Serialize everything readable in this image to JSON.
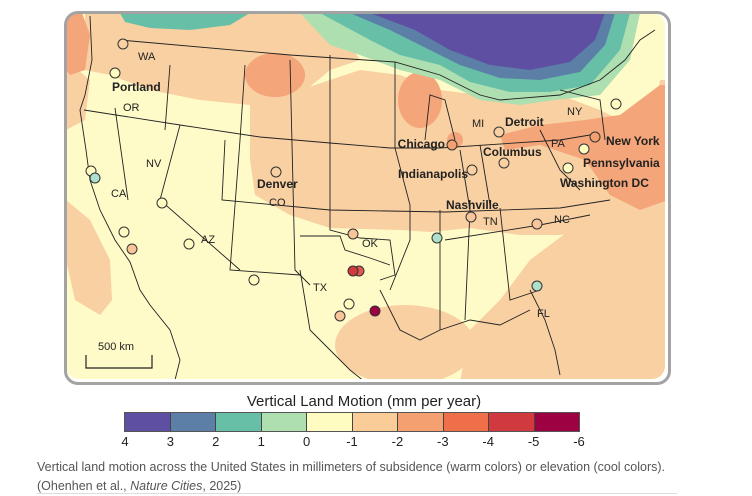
{
  "map": {
    "state_labels": {
      "wa": "WA",
      "or": "OR",
      "nv": "NV",
      "ca": "CA",
      "az": "AZ",
      "co": "CO",
      "ok": "OK",
      "tx": "TX",
      "tn": "TN",
      "nc": "NC",
      "fl": "FL",
      "mi": "MI",
      "pa": "PA",
      "ny": "NY"
    },
    "city_labels": {
      "portland": "Portland",
      "denver": "Denver",
      "chicago": "Chicago",
      "detroit": "Detroit",
      "columbus": "Columbus",
      "indianapolis": "Indianapolis",
      "nashville": "Nashville",
      "new_york": "New York",
      "pennsylvania": "Pennsylvania",
      "washington_dc": "Washington DC"
    },
    "scale_bar": "500 km"
  },
  "legend": {
    "title": "Vertical Land Motion (mm per year)",
    "colors": [
      "#5e4fa2",
      "#5b7fa6",
      "#66bfa6",
      "#aedfb0",
      "#fefcc0",
      "#f9cc98",
      "#f4a070",
      "#ef6f48",
      "#d0393d",
      "#9e0142"
    ],
    "ticks": [
      "4",
      "3",
      "2",
      "1",
      "0",
      "-1",
      "-2",
      "-3",
      "-4",
      "-5",
      "-6"
    ]
  },
  "caption": {
    "text": "Vertical land motion across the United States in millimeters of subsidence (warm colors) or elevation (cool colors).",
    "citation_prefix": "(Ohenhen et al., ",
    "journal": "Nature Cities",
    "citation_suffix": ", 2025)"
  }
}
